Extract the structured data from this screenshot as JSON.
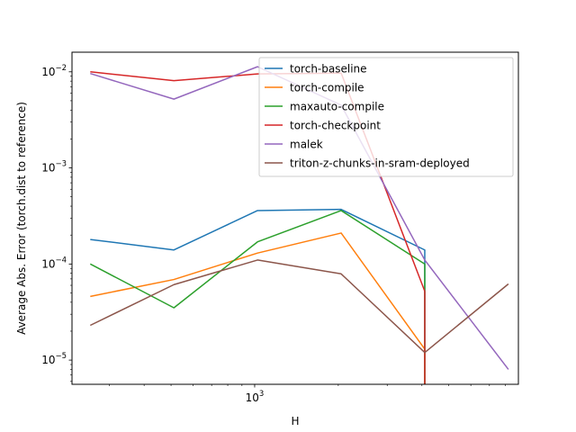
{
  "chart_data": {
    "type": "line",
    "xlabel": "H",
    "ylabel": "Average Abs. Error (torch.dist to reference)",
    "xscale": "log",
    "yscale": "log",
    "xlim": [
      220,
      8900
    ],
    "ylim": [
      5.6e-06,
      0.016
    ],
    "x_tick_labels": [
      {
        "value": 1000,
        "base": "10",
        "exp": "3"
      }
    ],
    "y_tick_labels": [
      {
        "value": 1e-05,
        "base": "10",
        "exp": "−5"
      },
      {
        "value": 0.0001,
        "base": "10",
        "exp": "−4"
      },
      {
        "value": 0.001,
        "base": "10",
        "exp": "−3"
      },
      {
        "value": 0.01,
        "base": "10",
        "exp": "−2"
      }
    ],
    "grid": false,
    "legend_position": "upper right",
    "series": [
      {
        "name": "torch-baseline",
        "color": "#1f77b4",
        "x": [
          256,
          512,
          1024,
          2048,
          4096,
          4096
        ],
        "y": [
          0.00018,
          0.00014,
          0.00036,
          0.00037,
          0.00014,
          0.0
        ]
      },
      {
        "name": "torch-compile",
        "color": "#ff7f0e",
        "x": [
          256,
          512,
          1024,
          2048,
          4096,
          4096
        ],
        "y": [
          4.6e-05,
          6.9e-05,
          0.00013,
          0.00021,
          1.3e-05,
          0.0
        ]
      },
      {
        "name": "maxauto-compile",
        "color": "#2ca02c",
        "x": [
          256,
          512,
          1024,
          2048,
          4096,
          4096
        ],
        "y": [
          0.0001,
          3.5e-05,
          0.00017,
          0.00036,
          0.0001,
          0.0
        ]
      },
      {
        "name": "torch-checkpoint",
        "color": "#d62728",
        "x": [
          256,
          512,
          1024,
          2048,
          4096,
          4096
        ],
        "y": [
          0.01,
          0.0081,
          0.0095,
          0.0097,
          5.2e-05,
          0.0
        ]
      },
      {
        "name": "malek",
        "color": "#9467bd",
        "x": [
          256,
          512,
          1024,
          2048,
          4096,
          8192
        ],
        "y": [
          0.0096,
          0.0052,
          0.0113,
          0.0045,
          0.00011,
          8e-06
        ]
      },
      {
        "name": "triton-z-chunks-in-sram-deployed",
        "color": "#8c564b",
        "x": [
          256,
          512,
          1024,
          2048,
          4096,
          8192
        ],
        "y": [
          2.3e-05,
          6.1e-05,
          0.00011,
          7.9e-05,
          1.2e-05,
          6.2e-05
        ]
      }
    ]
  }
}
